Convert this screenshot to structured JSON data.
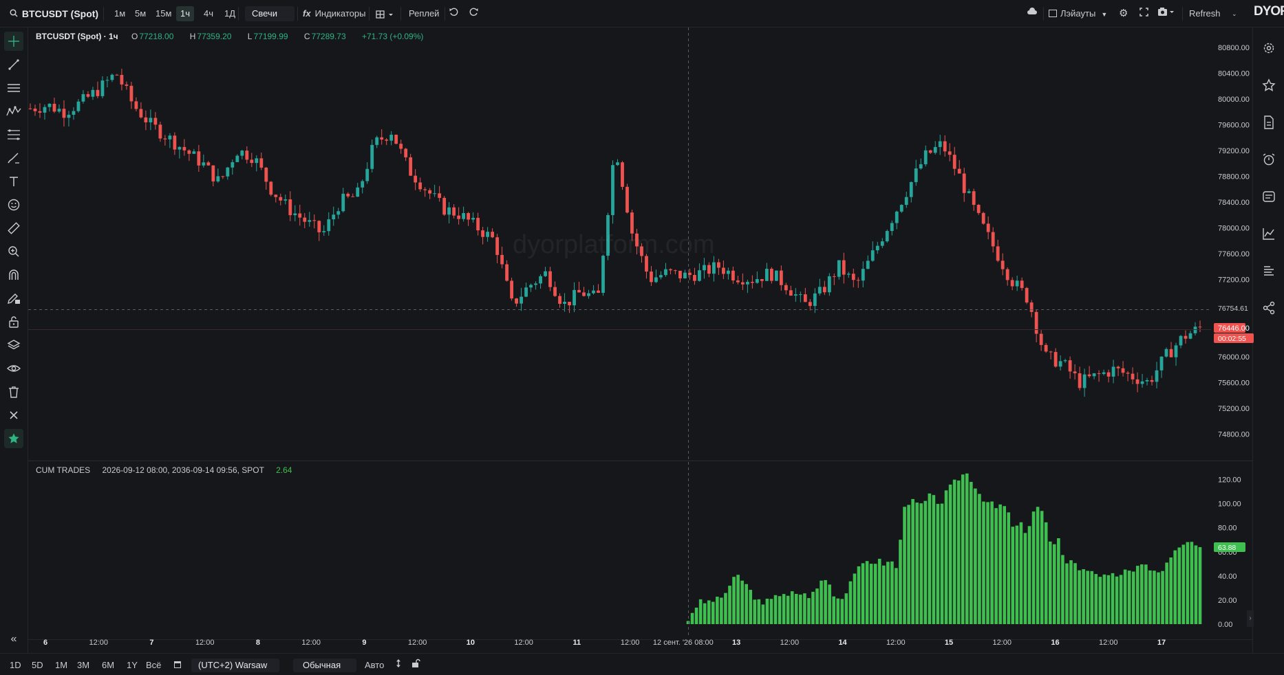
{
  "topbar": {
    "symbol": "BTCUSDT (Spot)",
    "intervals": [
      "1м",
      "5м",
      "15м",
      "1ч",
      "4ч",
      "1Д"
    ],
    "active_interval": "1ч",
    "chart_type": "Свечи",
    "indicators_label": "Индикаторы",
    "replay_label": "Реплей",
    "layouts_label": "Лэйауты",
    "refresh_label": "Refresh",
    "logo": "DYOR"
  },
  "legend": {
    "symbol": "BTCUSDT (Spot) · 1ч",
    "o_label": "O",
    "o": "77218.00",
    "h_label": "H",
    "h": "77359.20",
    "l_label": "L",
    "l": "77199.99",
    "c_label": "C",
    "c": "77289.73",
    "change": "+71.73 (+0.09%)"
  },
  "indicator": {
    "name": "CUM TRADES",
    "params": "2026-09-12 08:00, 2036-09-14 09:56, SPOT",
    "value": "2.64"
  },
  "watermark": "dyorplatform.com",
  "price_axis": [
    "80800.00",
    "80400.00",
    "80000.00",
    "79600.00",
    "79200.00",
    "78800.00",
    "78400.00",
    "78000.00",
    "77600.00",
    "77200.00",
    "76754.61",
    "76446.00",
    "76000.00",
    "75600.00",
    "75200.00",
    "74800.00"
  ],
  "crosshair_price": "76754.61",
  "last_price": "76446.00",
  "countdown": "00:02:55",
  "indicator_axis": [
    "120.00",
    "100.00",
    "80.00",
    "60.00",
    "40.00",
    "20.00",
    "0.00"
  ],
  "indicator_last": "63.88",
  "time_axis": [
    "6",
    "12:00",
    "7",
    "12:00",
    "8",
    "12:00",
    "9",
    "12:00",
    "10",
    "12:00",
    "11",
    "12:00",
    "12 сент. '26  08:00",
    "13",
    "12:00",
    "14",
    "12:00",
    "15",
    "12:00",
    "16",
    "12:00",
    "17"
  ],
  "bottombar": {
    "ranges": [
      "1D",
      "5D",
      "1M",
      "3M",
      "6M",
      "1Y",
      "Всё"
    ],
    "timezone": "(UTC+2) Warsaw",
    "scale_mode": "Обычная",
    "auto_label": "Авто"
  },
  "colors": {
    "up": "#26a69a",
    "down": "#ef5350",
    "volume": "#3fbf4f",
    "accent": "#2fb383"
  },
  "chart_data": [
    {
      "type": "candlestick",
      "title": "BTCUSDT (Spot) · 1ч",
      "y_range": [
        74600,
        81000
      ],
      "close_path_approx": [
        79850,
        79900,
        79800,
        79950,
        80150,
        80400,
        79900,
        79600,
        79400,
        79200,
        79000,
        78700,
        79200,
        79100,
        78600,
        78300,
        78100,
        77900,
        78400,
        78500,
        79300,
        79500,
        78900,
        78600,
        78300,
        78200,
        78000,
        77800,
        76800,
        77100,
        77300,
        76800,
        77000,
        76900,
        79300,
        77900,
        77200,
        77300,
        77250,
        77300,
        77400,
        77250,
        77200,
        77300,
        77100,
        76800,
        77000,
        77400,
        77100,
        77600,
        78100,
        78600,
        79100,
        79300,
        78800,
        78200,
        77700,
        77200,
        76900,
        76000,
        75900,
        75600,
        75700,
        75800,
        75700,
        75600,
        76000,
        76300,
        76446
      ],
      "last_price": 76446.0,
      "crosshair_price": 76754.61
    },
    {
      "type": "bar",
      "title": "CUM TRADES",
      "y_range": [
        0,
        130
      ],
      "values_approx": [
        2.64,
        14,
        18,
        18,
        20,
        20,
        26,
        34,
        40,
        36,
        28,
        22,
        14,
        20,
        26,
        24,
        22,
        26,
        26,
        24,
        24,
        30,
        40,
        32,
        22,
        22,
        32,
        44,
        46,
        52,
        52,
        52,
        50,
        52,
        46,
        100,
        102,
        100,
        98,
        106,
        104,
        100,
        110,
        116,
        122,
        126,
        120,
        110,
        104,
        100,
        96,
        100,
        90,
        78,
        84,
        70,
        96,
        100,
        84,
        62,
        70,
        50,
        56,
        48,
        44,
        46,
        44,
        40,
        38,
        40,
        42,
        44,
        40,
        52,
        50,
        44,
        42,
        46,
        52,
        60,
        64,
        68,
        64,
        63.88
      ],
      "last_value": 63.88
    }
  ]
}
